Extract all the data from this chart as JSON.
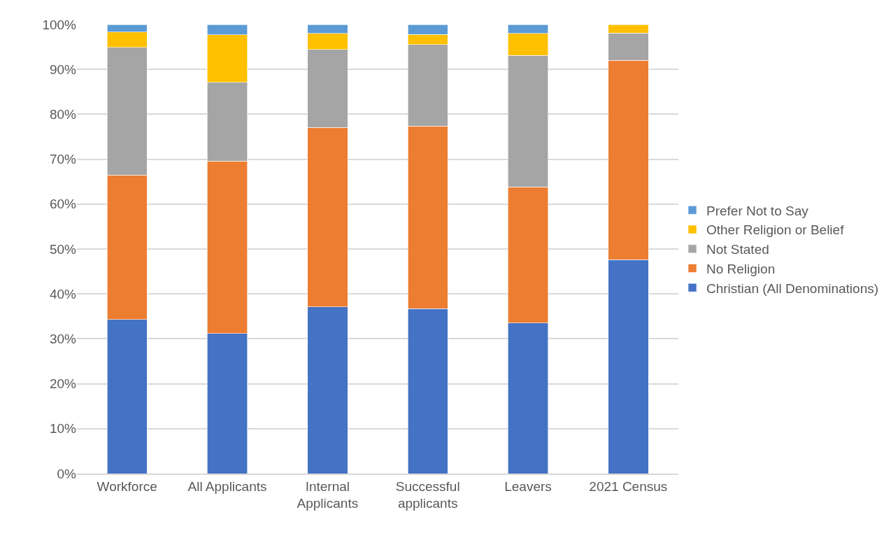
{
  "chart_data": {
    "type": "bar",
    "stacked": true,
    "legend": "right",
    "grid": "y",
    "categories": [
      "Workforce",
      "All Applicants",
      "Internal Applicants",
      "Successful applicants",
      "Leavers",
      "2021 Census"
    ],
    "series": [
      {
        "name": "Christian (All Denominations)",
        "color": "#4472c4",
        "values": [
          34.3,
          31.2,
          37.1,
          36.7,
          33.5,
          47.6
        ]
      },
      {
        "name": "No Religion",
        "color": "#ed7d31",
        "values": [
          32.2,
          38.4,
          40.0,
          40.7,
          30.3,
          44.4
        ]
      },
      {
        "name": "Not Stated",
        "color": "#a5a5a5",
        "values": [
          28.4,
          17.5,
          17.3,
          18.1,
          29.3,
          6.1
        ]
      },
      {
        "name": "Other Religion or Belief",
        "color": "#ffc000",
        "values": [
          3.4,
          10.6,
          3.6,
          2.3,
          4.9,
          1.9
        ]
      },
      {
        "name": "Prefer Not to Say",
        "color": "#5b9bd5",
        "values": [
          1.7,
          2.3,
          2.0,
          2.2,
          2.0,
          null
        ]
      }
    ],
    "ylim": [
      0,
      100
    ],
    "yticks": [
      {
        "value": 0,
        "label": "0%"
      },
      {
        "value": 10,
        "label": "10%"
      },
      {
        "value": 20,
        "label": "20%"
      },
      {
        "value": 30,
        "label": "30%"
      },
      {
        "value": 40,
        "label": "40%"
      },
      {
        "value": 50,
        "label": "50%"
      },
      {
        "value": 60,
        "label": "60%"
      },
      {
        "value": 70,
        "label": "70%"
      },
      {
        "value": 80,
        "label": "80%"
      },
      {
        "value": 90,
        "label": "90%"
      },
      {
        "value": 100,
        "label": "100%"
      }
    ]
  }
}
